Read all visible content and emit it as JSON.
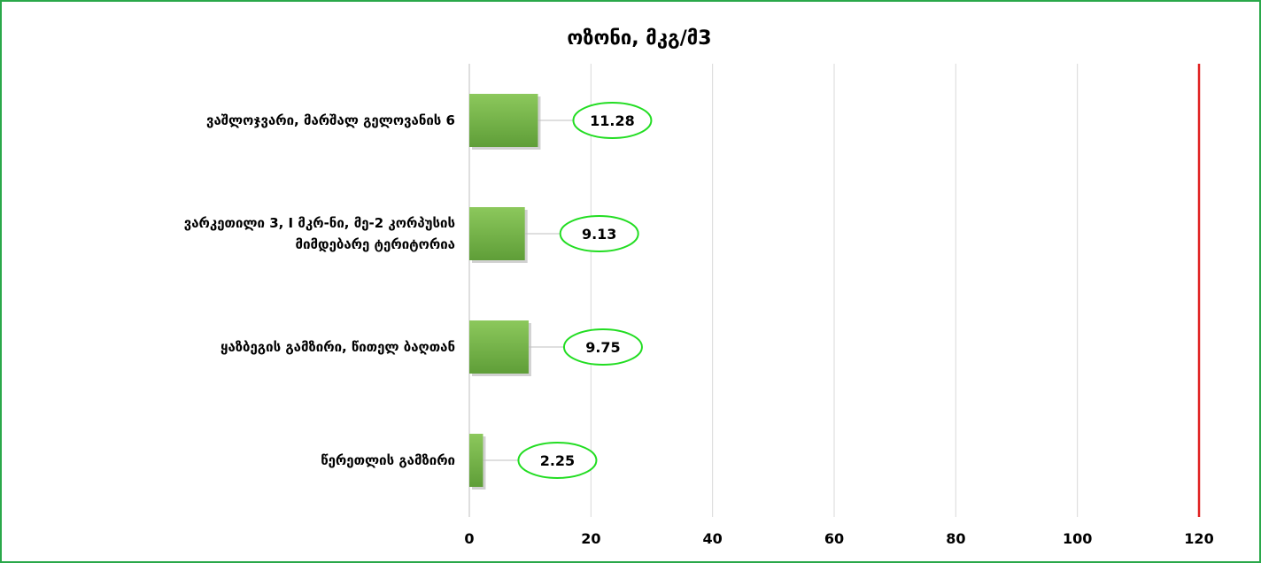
{
  "chart_data": {
    "type": "bar",
    "orientation": "horizontal",
    "title": "ოზონი, მკგ/მ3",
    "categories": [
      [
        "ვაშლოჯვარი, მარშალ გელოვანის 6"
      ],
      [
        "ვარკეთილი 3, I მკრ-ნი, მე-2 კორპუსის",
        "მიმდებარე ტერიტორია"
      ],
      [
        "ყაზბეგის გამზირი, წითელ ბაღთან"
      ],
      [
        "წერეთლის გამზირი"
      ]
    ],
    "values": [
      11.28,
      9.13,
      9.75,
      2.25
    ],
    "value_labels": [
      "11.28",
      "9.13",
      "9.75",
      "2.25"
    ],
    "xlim": [
      0,
      120
    ],
    "ticks": [
      "0",
      "20",
      "40",
      "60",
      "80",
      "100",
      "120"
    ],
    "limit_line": 120,
    "gridlines": true,
    "legend": "none",
    "colors": {
      "bar": "#6fae45",
      "bar_light": "#8cc85c",
      "limit": "#e02020",
      "label_ellipse": "#22dd22",
      "border": "#2aa84a"
    }
  }
}
